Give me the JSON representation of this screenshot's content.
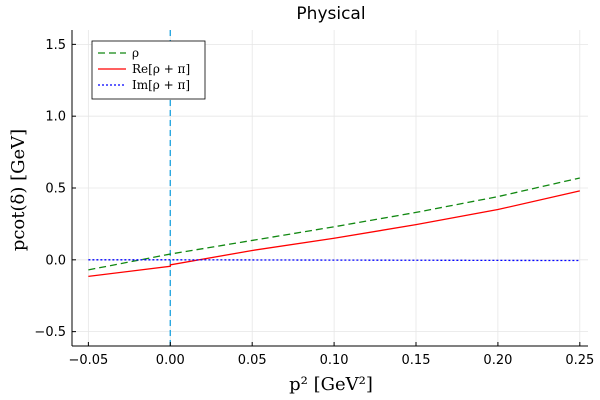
{
  "chart_data": {
    "type": "line",
    "title": "Physical",
    "xlabel": "p² [GeV²]",
    "ylabel": "pcot(δ) [GeV]",
    "xlim": [
      -0.06,
      0.255
    ],
    "ylim": [
      -0.6,
      1.6
    ],
    "xticks": [
      -0.05,
      0.0,
      0.05,
      0.1,
      0.15,
      0.2,
      0.25
    ],
    "xtick_labels": [
      "−0.05",
      "0.00",
      "0.05",
      "0.10",
      "0.15",
      "0.20",
      "0.25"
    ],
    "yticks": [
      -0.5,
      0.0,
      0.5,
      1.0,
      1.5
    ],
    "ytick_labels": [
      "−0.5",
      "0.0",
      "0.5",
      "1.0",
      "1.5"
    ],
    "grid": true,
    "legend_position": "top-left",
    "vline": {
      "x": 0.0,
      "color": "#2aa7e0",
      "style": "dashed"
    },
    "series": [
      {
        "name": "ρ",
        "color": "#118811",
        "style": "dashed",
        "x": [
          -0.05,
          0.0,
          0.05,
          0.1,
          0.15,
          0.2,
          0.25
        ],
        "y": [
          -0.07,
          0.04,
          0.135,
          0.23,
          0.33,
          0.44,
          0.57
        ]
      },
      {
        "name": "Re[ρ + π]",
        "color": "#ff0000",
        "style": "solid",
        "x": [
          -0.05,
          0.0,
          0.0001,
          0.05,
          0.1,
          0.15,
          0.2,
          0.25
        ],
        "y": [
          -0.115,
          -0.045,
          -0.035,
          0.065,
          0.15,
          0.245,
          0.35,
          0.48
        ]
      },
      {
        "name": "Im[ρ + π]",
        "color": "#0000ff",
        "style": "dotted",
        "x": [
          -0.05,
          0.0,
          0.05,
          0.1,
          0.15,
          0.2,
          0.25
        ],
        "y": [
          0.0,
          0.0,
          -0.001,
          -0.002,
          -0.003,
          -0.004,
          -0.005
        ]
      }
    ]
  }
}
